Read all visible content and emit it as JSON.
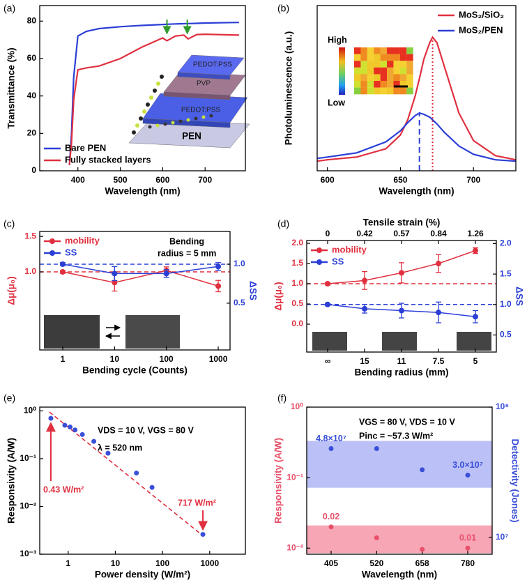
{
  "chart_data": [
    {
      "type": "line",
      "panel_label": "(a)",
      "xlabel": "Wavelength (nm)",
      "ylabel": "Transmittance (%)",
      "xlim": [
        310,
        795
      ],
      "xticks": [
        400,
        500,
        600,
        700
      ],
      "ylim": [
        0,
        88.3
      ],
      "yticks": [
        0,
        20,
        40,
        60,
        80
      ],
      "x": [
        380,
        385,
        390,
        400,
        420,
        450,
        500,
        550,
        600,
        610,
        630,
        650,
        660,
        680,
        700,
        780
      ],
      "series": [
        {
          "name": "Bare PEN",
          "color": "#2b3fd6",
          "values": [
            3,
            20,
            50,
            72,
            74.5,
            76,
            77,
            77.7,
            78.2,
            78.3,
            78.5,
            78.6,
            78.7,
            78.8,
            79,
            79.3
          ]
        },
        {
          "name": "Fully stacked layers",
          "color": "#e0303f",
          "values": [
            3,
            15,
            38,
            54,
            55,
            56,
            60,
            66,
            71,
            69.5,
            72,
            72.5,
            70.5,
            72.8,
            73,
            72.5
          ]
        }
      ],
      "legend": "lower left",
      "arrows_x": [
        610,
        658
      ],
      "arrow_color": "#2e9a2e",
      "inset_labels": [
        "PEDOT:PSS",
        "PVP",
        "PEDOT:PSS",
        "PEN"
      ]
    },
    {
      "type": "line",
      "panel_label": "(b)",
      "xlabel": "Wavelength (nm)",
      "ylabel": "Photoluminescence (a.u.)",
      "xlim": [
        593,
        729
      ],
      "xticks": [
        600,
        650,
        700
      ],
      "ylim": [
        0,
        1.2
      ],
      "x": [
        593,
        600,
        620,
        640,
        650,
        655,
        660,
        663,
        666,
        670,
        672,
        675,
        680,
        690,
        700,
        715,
        729
      ],
      "series": [
        {
          "name": "MoS₂/SiO₂",
          "color": "#e0303f",
          "values": [
            0.07,
            0.08,
            0.1,
            0.16,
            0.26,
            0.37,
            0.54,
            0.67,
            0.81,
            0.93,
            0.97,
            0.93,
            0.76,
            0.42,
            0.22,
            0.11,
            0.08
          ]
        },
        {
          "name": "MoS₂/PEN",
          "color": "#2b3fd6",
          "values": [
            0.09,
            0.1,
            0.13,
            0.21,
            0.29,
            0.35,
            0.4,
            0.42,
            0.41,
            0.39,
            0.37,
            0.34,
            0.28,
            0.18,
            0.12,
            0.08,
            0.07
          ]
        }
      ],
      "legend": "upper right",
      "peak_x": [
        672,
        663
      ],
      "inset_labels": [
        "High",
        "Low"
      ]
    },
    {
      "type": "line",
      "panel_label": "(c)",
      "xlabel": "Bending cycle (Counts)",
      "ylabel": "Δμ(μ₀)",
      "y2label": "ΔSS",
      "x": [
        1,
        10,
        100,
        1000
      ],
      "xscale": "log",
      "xlim": [
        0.36,
        1690
      ],
      "xticks": [
        1,
        10,
        100,
        1000
      ],
      "ylim": [
        -0.1,
        1.57
      ],
      "yticks": [
        {
          "value": 1,
          "label": "1.0"
        },
        1.5
      ],
      "y2lim": [
        -0.1,
        1.42
      ],
      "y2ticks": [
        0.5,
        {
          "value": 1,
          "label": "1.0"
        }
      ],
      "series": [
        {
          "name": "mobility",
          "color": "#e0303f",
          "values": [
            1.0,
            0.85,
            1.02,
            0.8
          ],
          "errors": [
            0.02,
            0.12,
            0.05,
            0.08
          ]
        },
        {
          "name": "SS",
          "color": "#2b3fd6",
          "axis": "y2",
          "values": [
            1.0,
            0.88,
            0.88,
            0.97
          ],
          "errors": [
            0.02,
            0.09,
            0.05,
            0.05
          ]
        }
      ],
      "markers": true,
      "legend": "upper left",
      "hlines": [
        {
          "axis": "y",
          "value": 1,
          "color": "#e0303f"
        },
        {
          "axis": "y2",
          "value": 1,
          "color": "#2b3fd6"
        }
      ],
      "annotations": [
        "Bending",
        "radius = 5 mm"
      ]
    },
    {
      "type": "line",
      "panel_label": "(d)",
      "xlabel": "Bending radius (mm)",
      "ylabel": "Δμ(μ₀)",
      "y2label": "ΔSS",
      "x2label": "Tensile strain (%)",
      "top_labels": [
        0,
        0.42,
        0.57,
        0.84,
        1.26
      ],
      "categories": [
        "∞",
        "15",
        "11",
        "7.5",
        "5"
      ],
      "ylim": [
        -0.69,
        2.07
      ],
      "yticks": [
        {
          "value": 0,
          "label": "0.0"
        },
        0.5,
        {
          "value": 1,
          "label": "1.0"
        },
        1.5,
        {
          "value": 2,
          "label": "2.0"
        }
      ],
      "y2lim": [
        0.22,
        2.05
      ],
      "y2ticks": [
        0.5,
        {
          "value": 1,
          "label": "1.0"
        },
        1.5,
        {
          "value": 2,
          "label": "2.0"
        }
      ],
      "series": [
        {
          "name": "mobility",
          "color": "#e0303f",
          "values": [
            1.0,
            1.08,
            1.27,
            1.5,
            1.82
          ],
          "errors": [
            0.03,
            0.22,
            0.25,
            0.22,
            0.07
          ]
        },
        {
          "name": "SS",
          "color": "#2b3fd6",
          "axis": "y2",
          "values": [
            1.0,
            0.93,
            0.9,
            0.87,
            0.8
          ],
          "errors": [
            0.02,
            0.07,
            0.12,
            0.17,
            0.1
          ]
        }
      ],
      "markers": true,
      "legend": "upper left",
      "hlines": [
        {
          "axis": "y",
          "value": 1,
          "color": "#e0303f"
        },
        {
          "axis": "y2",
          "value": 1,
          "color": "#2b3fd6"
        }
      ]
    },
    {
      "type": "scatter",
      "panel_label": "(e)",
      "xlabel": "Power density (W/m²)",
      "ylabel": "Responsivity (A/W)",
      "xscale": "log",
      "yscale": "log",
      "xlim": [
        0.25,
        5700
      ],
      "xticks": [
        1,
        10,
        100,
        1000
      ],
      "ylim": [
        0.001,
        1.2
      ],
      "yticks": [
        {
          "value": 0.001,
          "label": "10⁻³"
        },
        {
          "value": 0.01,
          "label": "10⁻²"
        },
        {
          "value": 0.1,
          "label": "10⁻¹"
        },
        {
          "value": 1,
          "label": "10⁰"
        }
      ],
      "x": [
        0.43,
        0.85,
        1.1,
        1.4,
        2,
        3.5,
        7,
        28,
        60,
        717
      ],
      "values": [
        0.7,
        0.5,
        0.46,
        0.4,
        0.32,
        0.23,
        0.13,
        0.05,
        0.025,
        0.0026
      ],
      "color": "#3a4fd8",
      "fit": {
        "x": [
          0.4,
          730
        ],
        "values": [
          0.95,
          0.0024
        ],
        "color": "#e0303f"
      },
      "annotations": [
        "VDS = 10 V, VGS = 80 V",
        "λ = 520 nm",
        "0.43 W/m²",
        "717 W/m²"
      ]
    },
    {
      "type": "scatter",
      "panel_label": "(f)",
      "xlabel": "Wavelength (nm)",
      "ylabel": "Responsivity (A/W)",
      "y2label": "Detectivity (Jones)",
      "categories": [
        "405",
        "520",
        "658",
        "780"
      ],
      "yscale": "log",
      "y2scale": "log",
      "ylim": [
        0.0082,
        1
      ],
      "yticks": [
        {
          "value": 0.01,
          "label": "10⁻²"
        },
        {
          "value": 0.1,
          "label": "10⁻¹"
        },
        {
          "value": 1,
          "label": "10⁰"
        }
      ],
      "y2lim": [
        7400000,
        100000000
      ],
      "y2ticks": [
        {
          "value": 10000000,
          "label": "10⁷"
        },
        {
          "value": 100000000,
          "label": "10⁸"
        }
      ],
      "series": [
        {
          "color": "#e8506a",
          "values": [
            0.02,
            0.014,
            0.0096,
            0.01
          ],
          "value_labels": [
            "0.02",
            null,
            null,
            "0.01"
          ]
        },
        {
          "color": "#3a4fd8",
          "axis": "y2",
          "values": [
            48000000,
            48000000,
            33000000,
            30000000
          ],
          "value_labels": [
            "4.8×10⁷",
            null,
            null,
            "3.0×10⁷"
          ]
        }
      ],
      "bands": [
        {
          "axis": "y",
          "from": 0.0085,
          "to": 0.021,
          "color": "#f26a85"
        },
        {
          "axis": "y2",
          "from": 24000000,
          "to": 55000000,
          "color": "#8e96f0"
        }
      ],
      "annotations": [
        "VGS = 80 V, VDS = 10 V",
        "Pinc = ~57.3 W/m²"
      ]
    }
  ]
}
